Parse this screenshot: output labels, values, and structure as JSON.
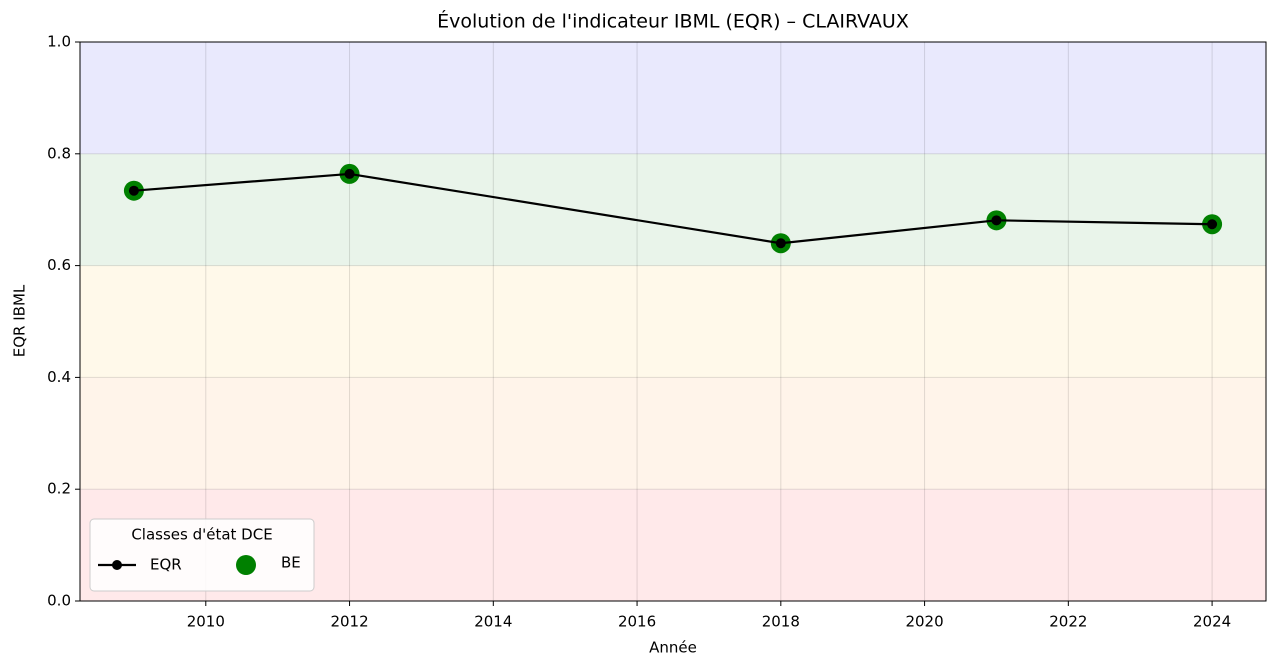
{
  "chart_data": {
    "type": "line",
    "title": "Évolution de l'indicateur IBML (EQR) – CLAIRVAUX",
    "x_label": "Année",
    "y_label": "EQR IBML",
    "x": [
      2009,
      2012,
      2018,
      2021,
      2024
    ],
    "series": [
      {
        "name": "EQR",
        "color": "#000000",
        "values": [
          0.734,
          0.764,
          0.64,
          0.681,
          0.674
        ]
      },
      {
        "name": "BE",
        "color": "#008000",
        "values": [
          0.734,
          0.764,
          0.64,
          0.681,
          0.674
        ]
      }
    ],
    "xlim": [
      2008.25,
      2024.75
    ],
    "xticks": [
      2010,
      2012,
      2014,
      2016,
      2018,
      2020,
      2022,
      2024
    ],
    "ylim": [
      0,
      1
    ],
    "yticks": [
      {
        "value": 0,
        "label": "0.0"
      },
      0.2,
      0.4,
      0.6,
      0.8,
      {
        "value": 1,
        "label": "1.0"
      }
    ],
    "bands": [
      {
        "from": 0,
        "to": 0.2,
        "color": "#ffe9ea"
      },
      {
        "from": 0.2,
        "to": 0.4,
        "color": "#fff4ea"
      },
      {
        "from": 0.4,
        "to": 0.6,
        "color": "#fff9ea"
      },
      {
        "from": 0.6,
        "to": 0.8,
        "color": "#e9f4ea"
      },
      {
        "from": 0.8,
        "to": 1,
        "color": "#e9e9fd"
      }
    ],
    "grid": true,
    "legend": {
      "title": "Classes d'état DCE",
      "position": "lower left"
    }
  }
}
